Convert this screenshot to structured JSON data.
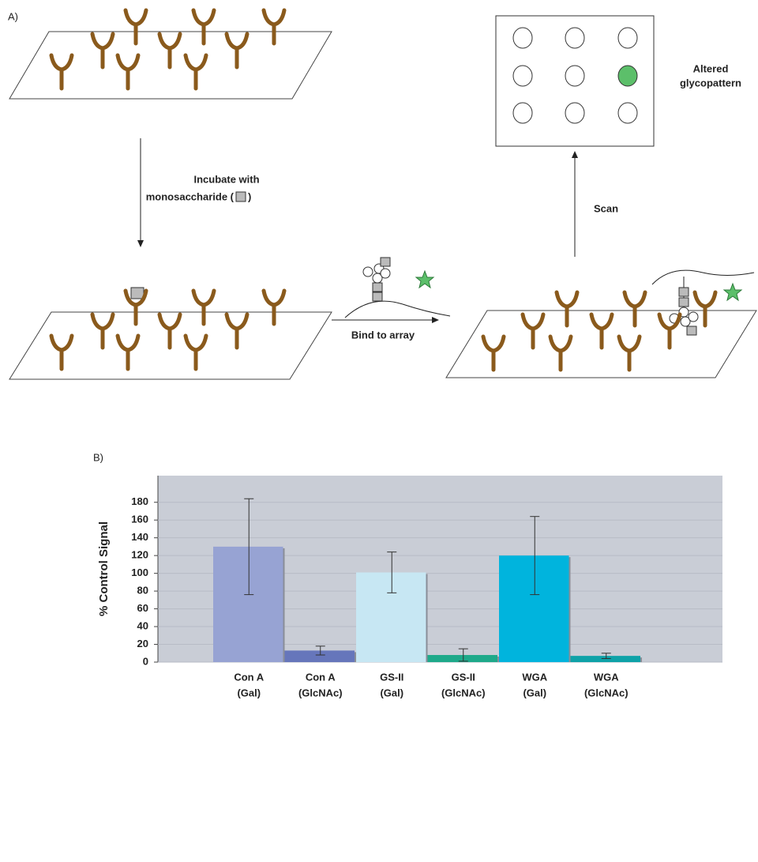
{
  "diagram": {
    "panel_label": "A)",
    "incubate_line1": "Incubate with",
    "incubate_line2": "monosaccharide (",
    "incubate_line3": ")",
    "bind_label": "Bind to array",
    "scan_label": "Scan",
    "result_line1": "Altered",
    "result_line2": "glycopattern"
  },
  "panel_b_label": "B)",
  "chart_data": {
    "type": "bar",
    "y_label": "% Control Signal",
    "categories": [
      [
        "Con A",
        "(Gal)"
      ],
      [
        "Con A",
        "(GlcNAc)"
      ],
      [
        "GS-II",
        "(Gal)"
      ],
      [
        "GS-II",
        "(GlcNAc)"
      ],
      [
        "WGA",
        "(Gal)"
      ],
      [
        "WGA",
        "(GlcNAc)"
      ]
    ],
    "values": [
      130,
      13,
      101,
      8,
      120,
      7
    ],
    "errors": [
      54,
      5,
      23,
      7,
      44,
      3
    ],
    "colors": [
      "#97a3d3",
      "#6676bb",
      "#c7e7f3",
      "#1ea98a",
      "#00b4dd",
      "#0ea2a8"
    ],
    "ylim": [
      0,
      210
    ],
    "yticks": [
      0,
      20,
      40,
      60,
      80,
      100,
      120,
      140,
      160,
      180
    ],
    "grid": true
  }
}
